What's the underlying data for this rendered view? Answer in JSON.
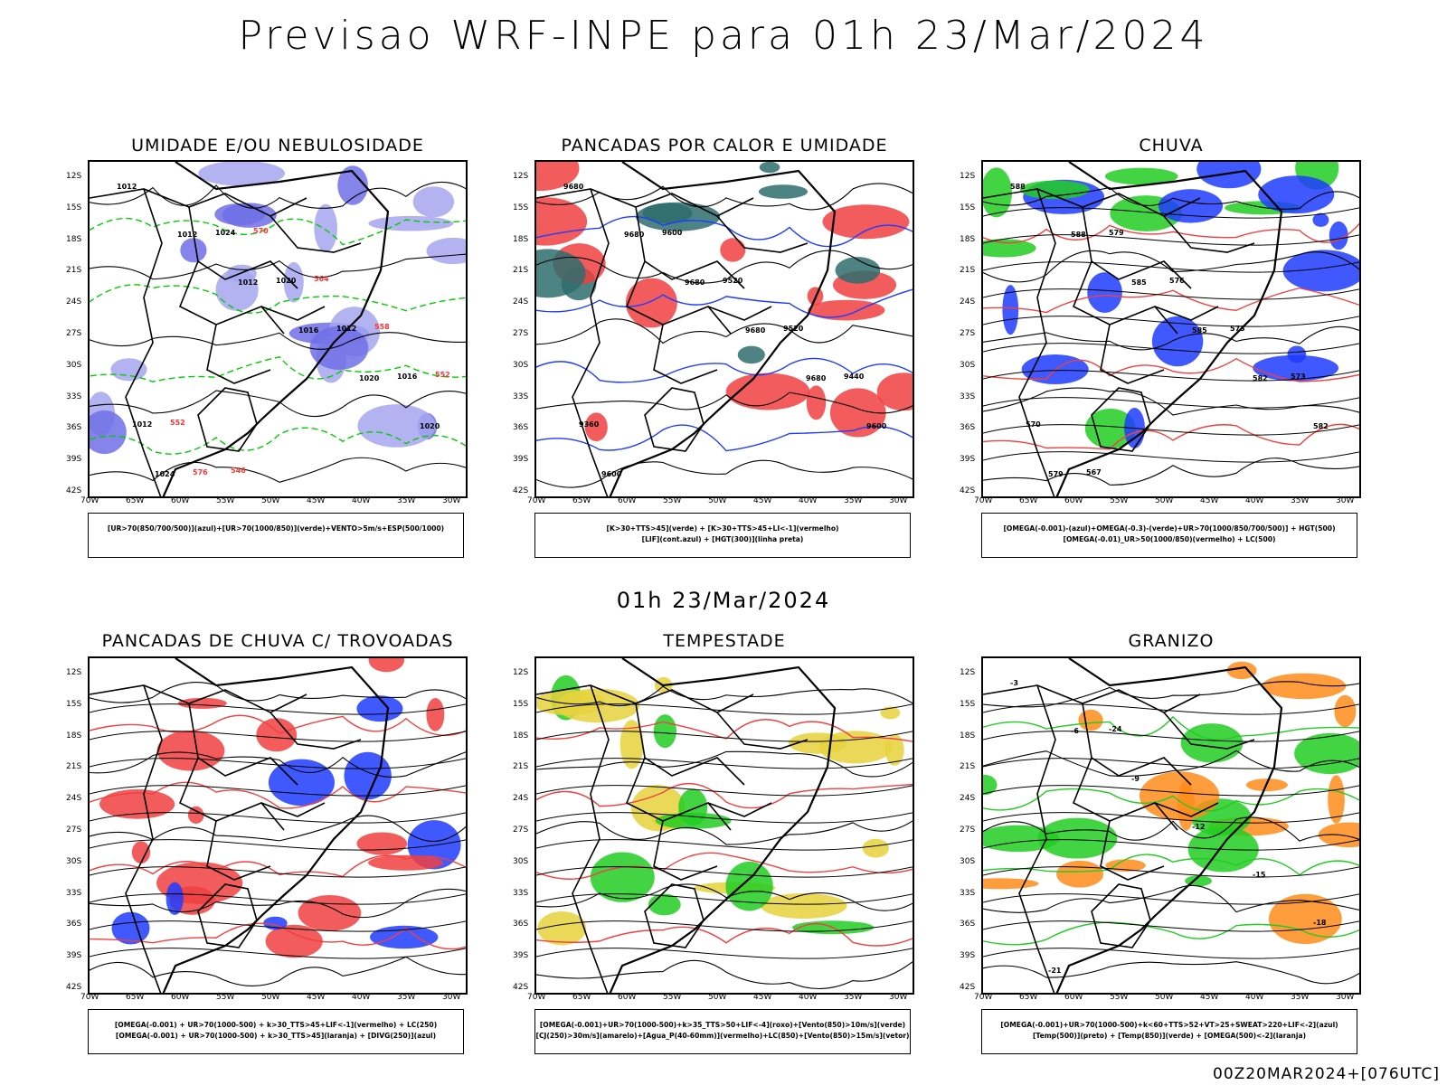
{
  "title": "Previsao WRF-INPE  para 01h 23/Mar/2024",
  "mid_title": "01h 23/Mar/2024",
  "footer": "00Z20MAR2024+[076UTC]",
  "axes": {
    "lat_labels": [
      "12S",
      "15S",
      "18S",
      "21S",
      "24S",
      "27S",
      "30S",
      "33S",
      "36S",
      "39S",
      "42S"
    ],
    "lon_labels": [
      "70W",
      "65W",
      "60W",
      "55W",
      "50W",
      "45W",
      "40W",
      "35W",
      "30W"
    ]
  },
  "panels": [
    {
      "title": "UMIDADE E/OU NEBULOSIDADE",
      "legend": [
        "[UR>70(850/700/500)](azul)+[UR>70(1000/850)](verde)+VENTO>5m/s+ESP(500/1000)"
      ],
      "contour_labels": [
        "1012",
        "1012",
        "1012",
        "1016",
        "1020",
        "1020",
        "1024",
        "1024",
        "1020",
        "1012",
        "1016",
        "1012",
        "576",
        "570",
        "564",
        "558",
        "552",
        "552",
        "546"
      ],
      "colors": {
        "fill_a": "#a6a6f0",
        "fill_b": "#6e6ee6",
        "line_a": "#00cc00",
        "line_b": "#ff3333",
        "line_c": "#000000"
      }
    },
    {
      "title": "PANCADAS POR CALOR E UMIDADE",
      "legend": [
        "[K>30+TTS>45](verde) + [K>30+TTS>45+LI<-1](vermelho)",
        "[LIF](cont.azul) + [HGT(300)](linha preta)"
      ],
      "contour_labels": [
        "9680",
        "9680",
        "9680",
        "9680",
        "9680",
        "9600",
        "9600",
        "9600",
        "9520",
        "9520",
        "9440",
        "9360"
      ],
      "colors": {
        "fill_a": "#f04040",
        "fill_b": "#2e6d6d",
        "line_a": "#1e3cff",
        "line_b": "#000000",
        "line_c": "#000000"
      }
    },
    {
      "title": "CHUVA",
      "legend": [
        "[OMEGA(-0.001)-(azul)+OMEGA(-0.3)-(verde)+UR>70(1000/850/700/500)] + HGT(500)",
        "[OMEGA(-0.01)_UR>50(1000/850)(vermelho) + LC(500)"
      ],
      "contour_labels": [
        "588",
        "588",
        "585",
        "585",
        "582",
        "582",
        "579",
        "579",
        "576",
        "573",
        "573",
        "570",
        "567"
      ],
      "colors": {
        "fill_a": "#1e3cff",
        "fill_b": "#22cc22",
        "line_a": "#f04040",
        "line_b": "#000000",
        "line_c": "#000000"
      }
    },
    {
      "title": "PANCADAS DE CHUVA C/ TROVOADAS",
      "legend": [
        "[OMEGA(-0.001) + UR>70(1000-500) + k>30_TTS>45+LIF<-1](vermelho) + LC(250)",
        "[OMEGA(-0.001) + UR>70(1000-500) + k>30_TTS>45](laranja) + [DIVG(250)](azul)"
      ],
      "contour_labels": [],
      "colors": {
        "fill_a": "#f04040",
        "fill_b": "#1e3cff",
        "line_a": "#f04040",
        "line_b": "#000000",
        "line_c": "#000000"
      }
    },
    {
      "title": "TEMPESTADE",
      "legend": [
        "[OMEGA(-0.001)+UR>70(1000-500)+k>35_TTS>50+LIF<-4](roxo)+[Vento(850)>10m/s](verde)",
        "[CJ(250)>30m/s](amarelo)+[Agua_P(40-60mm)](vermelho)+LC(850)+[Vento(850)>15m/s](vetor)"
      ],
      "contour_labels": [],
      "colors": {
        "fill_a": "#e6d23c",
        "fill_b": "#22cc22",
        "line_a": "#f04040",
        "line_b": "#000000",
        "line_c": "#000000"
      }
    },
    {
      "title": "GRANIZO",
      "legend": [
        "[OMEGA(-0.001)+UR>70(1000-500)+k<60+TTS>52+VT>25+SWEAT>220+LIF<-2](azul)",
        "[Temp(500)](preto) + [Temp(850)](verde) + [OMEGA(500)<-2](laranja)"
      ],
      "contour_labels": [
        "-3",
        "-6",
        "-9",
        "-12",
        "-15",
        "-18",
        "-21",
        "-24"
      ],
      "colors": {
        "fill_a": "#ff8c1a",
        "fill_b": "#22cc22",
        "line_a": "#22cc22",
        "line_b": "#000000",
        "line_c": "#000000"
      }
    }
  ]
}
